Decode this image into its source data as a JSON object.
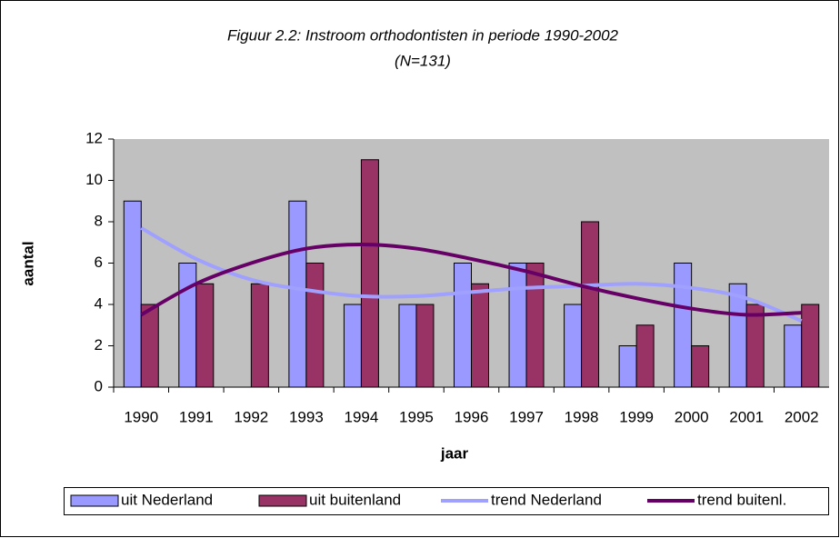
{
  "chart_data": {
    "type": "bar",
    "title": "Figuur 2.2: Instroom orthodontisten in periode 1990-2002",
    "subtitle": "(N=131)",
    "x_label": "jaar",
    "y_label": "aantal",
    "categories": [
      "1990",
      "1991",
      "1992",
      "1993",
      "1994",
      "1995",
      "1996",
      "1997",
      "1998",
      "1999",
      "2000",
      "2001",
      "2002"
    ],
    "series": [
      {
        "name": "uit Nederland",
        "type": "bar",
        "color": "#9999ff",
        "values": [
          9,
          6,
          0,
          9,
          4,
          4,
          6,
          6,
          4,
          2,
          6,
          5,
          3
        ]
      },
      {
        "name": "uit buitenland",
        "type": "bar",
        "color": "#993366",
        "values": [
          4,
          5,
          5,
          6,
          11,
          4,
          5,
          6,
          8,
          3,
          2,
          4,
          4
        ]
      },
      {
        "name": "trend Nederland",
        "type": "line",
        "color": "#a0a0ff",
        "values": [
          7.7,
          6.2,
          5.2,
          4.7,
          4.4,
          4.4,
          4.6,
          4.8,
          4.9,
          5.0,
          4.8,
          4.3,
          3.2
        ]
      },
      {
        "name": "trend buitenl.",
        "type": "line",
        "color": "#660066",
        "values": [
          3.5,
          5.0,
          6.0,
          6.7,
          6.9,
          6.7,
          6.2,
          5.6,
          4.9,
          4.3,
          3.8,
          3.5,
          3.6
        ]
      }
    ],
    "ylim": [
      0,
      12
    ],
    "yticks": [
      0,
      2,
      4,
      6,
      8,
      10,
      12
    ],
    "plot_background": "#c0c0c0",
    "legend": "bottom"
  }
}
